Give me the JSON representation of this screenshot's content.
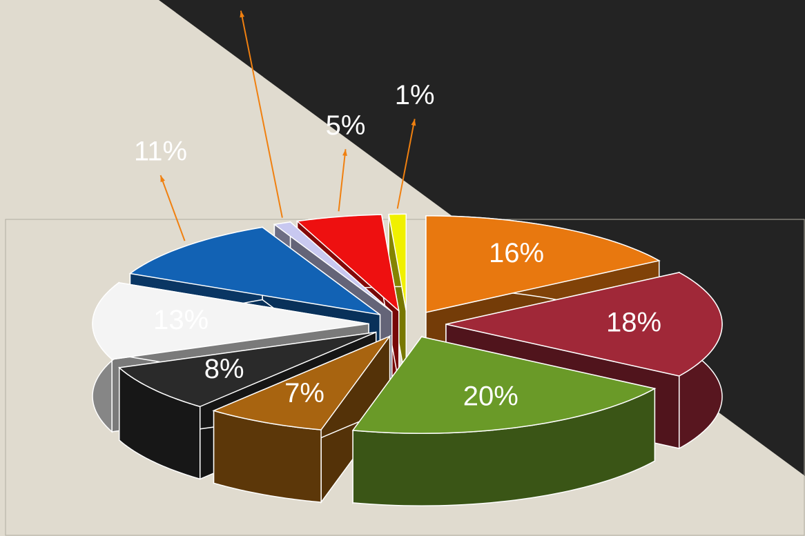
{
  "chart_data": {
    "type": "pie",
    "values": [
      16,
      18,
      20,
      7,
      8,
      13,
      11,
      1,
      5,
      1
    ],
    "value_labels": [
      "16%",
      "18%",
      "20%",
      "7%",
      "8%",
      "13%",
      "11%",
      "1%",
      "5%",
      "1%"
    ],
    "colors": [
      "#e8780f",
      "#a02838",
      "#6a9a28",
      "#a86410",
      "#2a2a2a",
      "#f4f4f4",
      "#1262b4",
      "#c8c8f0",
      "#ee1010",
      "#f0f000"
    ]
  }
}
